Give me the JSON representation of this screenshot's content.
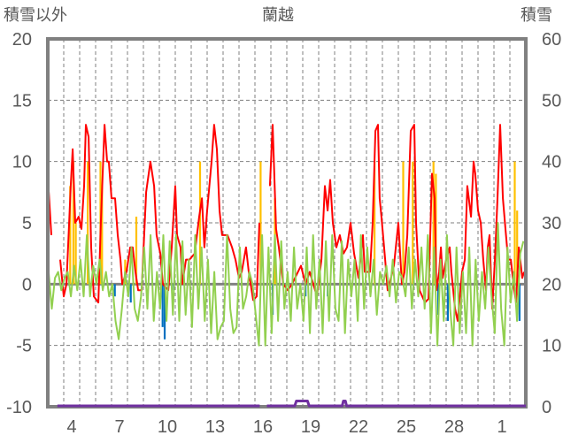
{
  "chart_data": {
    "type": "line",
    "title": "蘭越",
    "ylabel_left": "積雪以外",
    "ylabel_right": "積雪",
    "ylim_left": [
      -10,
      20
    ],
    "ylim_right": [
      0,
      60
    ],
    "yticks_left": [
      "20",
      "15",
      "10",
      "5",
      "0",
      "-5",
      "-10"
    ],
    "yticks_right": [
      "60",
      "50",
      "40",
      "30",
      "20",
      "10",
      "0"
    ],
    "xlim_days": [
      0,
      30
    ],
    "xtick_labels": [
      "4",
      "7",
      "10",
      "13",
      "16",
      "19",
      "22",
      "25",
      "28",
      "1"
    ],
    "xtick_positions_days": [
      1.5,
      4.5,
      7.5,
      10.5,
      13.5,
      16.5,
      19.5,
      22.5,
      25.5,
      28.5
    ],
    "grid": true,
    "colors": {
      "red": "#ff0000",
      "green": "#92d050",
      "yellow": "#ffc000",
      "blue": "#0070c0",
      "purple": "#7030a0",
      "axis": "#808080"
    },
    "series": [
      {
        "name": "red-line",
        "axis": "left",
        "color": "#ff0000",
        "points": [
          [
            0.06,
            7.5
          ],
          [
            0.22,
            4
          ],
          [
            0.5,
            null
          ],
          [
            0.78,
            2
          ],
          [
            1,
            -1
          ],
          [
            1.17,
            0
          ],
          [
            1.44,
            8
          ],
          [
            1.56,
            11
          ],
          [
            1.72,
            5
          ],
          [
            1.94,
            5.5
          ],
          [
            2.11,
            4.5
          ],
          [
            2.28,
            8
          ],
          [
            2.39,
            13
          ],
          [
            2.56,
            12
          ],
          [
            2.72,
            3
          ],
          [
            2.89,
            -1
          ],
          [
            3.17,
            -1.5
          ],
          [
            3.33,
            5
          ],
          [
            3.56,
            13
          ],
          [
            3.72,
            10
          ],
          [
            3.83,
            10
          ],
          [
            4,
            7
          ],
          [
            4.22,
            7
          ],
          [
            4.39,
            4
          ],
          [
            4.56,
            2
          ],
          [
            4.67,
            0
          ],
          [
            4.94,
            1
          ],
          [
            5.17,
            3
          ],
          [
            5.33,
            3
          ],
          [
            5.5,
            1
          ],
          [
            5.67,
            -0.5
          ],
          [
            5.89,
            -0.5
          ],
          [
            6.17,
            7.5
          ],
          [
            6.44,
            10
          ],
          [
            6.67,
            8
          ],
          [
            6.83,
            4
          ],
          [
            7.06,
            2.5
          ],
          [
            7.22,
            0
          ],
          [
            7.56,
            -0.5
          ],
          [
            7.78,
            3
          ],
          [
            8,
            8
          ],
          [
            8.11,
            4
          ],
          [
            8.33,
            3
          ],
          [
            8.44,
            0
          ],
          [
            8.67,
            2
          ],
          [
            8.89,
            2
          ],
          [
            9.22,
            2.5
          ],
          [
            9.5,
            5.5
          ],
          [
            9.67,
            7
          ],
          [
            9.83,
            3
          ],
          [
            10,
            6
          ],
          [
            10.28,
            10
          ],
          [
            10.44,
            13
          ],
          [
            10.61,
            11
          ],
          [
            10.78,
            6
          ],
          [
            10.94,
            4
          ],
          [
            11.28,
            4
          ],
          [
            11.56,
            3
          ],
          [
            11.78,
            2
          ],
          [
            12,
            0.5
          ],
          [
            12.17,
            1
          ],
          [
            12.44,
            3
          ],
          [
            12.61,
            1
          ],
          [
            12.89,
            -1.3
          ],
          [
            13.11,
            -1
          ],
          [
            13.28,
            5
          ],
          [
            13.6,
            null
          ],
          [
            13.94,
            8
          ],
          [
            14.11,
            13
          ],
          [
            14.33,
            4.5
          ],
          [
            14.5,
            3
          ],
          [
            14.78,
            0
          ],
          [
            15.06,
            -0.5
          ],
          [
            15.33,
            0
          ],
          [
            15.89,
            1.5
          ],
          [
            16.17,
            0
          ],
          [
            16.44,
            1
          ],
          [
            16.89,
            -1
          ],
          [
            17.17,
            2
          ],
          [
            17.39,
            8
          ],
          [
            17.56,
            6
          ],
          [
            17.72,
            8.5
          ],
          [
            17.89,
            5
          ],
          [
            18.11,
            3
          ],
          [
            18.33,
            4
          ],
          [
            18.56,
            2.5
          ],
          [
            18.78,
            3
          ],
          [
            19,
            5
          ],
          [
            19.22,
            2.5
          ],
          [
            19.5,
            0.5
          ],
          [
            19.78,
            4
          ],
          [
            19.89,
            1
          ],
          [
            20.22,
            1
          ],
          [
            20.39,
            5
          ],
          [
            20.56,
            12.5
          ],
          [
            20.72,
            13
          ],
          [
            20.83,
            7
          ],
          [
            20.94,
            5.5
          ],
          [
            21.17,
            2
          ],
          [
            21.33,
            -0.5
          ],
          [
            21.44,
            0
          ],
          [
            21.72,
            1.5
          ],
          [
            22,
            5
          ],
          [
            22.22,
            0
          ],
          [
            22.39,
            1
          ],
          [
            22.56,
            4
          ],
          [
            22.78,
            12.5
          ],
          [
            23,
            13
          ],
          [
            23.11,
            5
          ],
          [
            23.33,
            -0.5
          ],
          [
            23.5,
            -1
          ],
          [
            23.67,
            -1.5
          ],
          [
            23.89,
            -1.2
          ],
          [
            24.11,
            9
          ],
          [
            24.28,
            7
          ],
          [
            24.39,
            -0.5
          ],
          [
            24.56,
            1
          ],
          [
            24.67,
            3
          ],
          [
            24.78,
            0.5
          ],
          [
            25,
            2
          ],
          [
            25.22,
            3
          ],
          [
            25.33,
            1
          ],
          [
            25.56,
            -2
          ],
          [
            25.72,
            -3
          ],
          [
            26,
            1
          ],
          [
            26.17,
            2
          ],
          [
            26.33,
            8
          ],
          [
            26.56,
            5.5
          ],
          [
            26.72,
            10
          ],
          [
            26.83,
            9
          ],
          [
            27,
            6
          ],
          [
            27.17,
            5
          ],
          [
            27.33,
            2
          ],
          [
            27.5,
            -0.5
          ],
          [
            27.61,
            3
          ],
          [
            27.72,
            4
          ],
          [
            27.89,
            -2
          ],
          [
            28.06,
            2
          ],
          [
            28.22,
            7
          ],
          [
            28.39,
            13
          ],
          [
            28.56,
            7
          ],
          [
            28.72,
            4.5
          ],
          [
            28.89,
            2
          ],
          [
            29.06,
            2
          ],
          [
            29.22,
            0
          ],
          [
            29.39,
            -1.5
          ],
          [
            29.56,
            3
          ],
          [
            29.78,
            0.5
          ],
          [
            29.89,
            1
          ]
        ]
      },
      {
        "name": "green-line",
        "axis": "left",
        "color": "#92d050",
        "step_days": 0.2,
        "values": [
          1,
          -2,
          0.5,
          1,
          -0.5,
          0.5,
          1,
          -1,
          1.5,
          -0.5,
          2,
          -1,
          4,
          -1,
          1.5,
          0,
          2,
          -0.5,
          1,
          -1,
          0,
          -3,
          -4.5,
          -2,
          1,
          -1,
          3,
          -2,
          -3,
          -1,
          3,
          -2,
          4,
          -3,
          1,
          -2,
          4,
          -3,
          3.5,
          -2.5,
          4,
          -3,
          3.5,
          -2.5,
          2,
          -3.5,
          4,
          -2,
          3,
          -3,
          2,
          -4,
          1,
          -4.5,
          -3.5,
          -3,
          4,
          -2,
          -4,
          -3.5,
          3,
          -2,
          -1,
          1,
          0,
          -2.5,
          -5,
          4,
          -5,
          3,
          -4,
          4,
          -3,
          3.5,
          -2,
          1,
          -3,
          3,
          -2,
          0,
          -3,
          3,
          -4,
          4,
          -2,
          2,
          -4,
          3.5,
          -3,
          4,
          -2,
          -3,
          3.5,
          -4,
          2,
          -1,
          2,
          -3,
          4,
          -2,
          3,
          -1,
          2,
          -2.5,
          1,
          0,
          1.5,
          -1,
          2,
          -1.5,
          1,
          0.5,
          -1,
          3,
          -2,
          2,
          -1,
          3,
          -2,
          4,
          -4,
          3,
          -5,
          2,
          -3,
          4,
          -2,
          -5,
          3,
          -4,
          1,
          -4,
          3,
          -5,
          2,
          -3,
          1,
          -2,
          3,
          -1,
          -4,
          5,
          -2,
          -5,
          3,
          -1.5,
          1,
          -3,
          2.5,
          3.5
        ]
      },
      {
        "name": "yellow-bars",
        "axis": "left",
        "color": "#ffc000",
        "bars": [
          [
            1.4,
            8
          ],
          [
            1.6,
            10
          ],
          [
            1.75,
            5
          ],
          [
            2.5,
            10
          ],
          [
            3.3,
            10
          ],
          [
            3.4,
            8
          ],
          [
            4.85,
            2
          ],
          [
            5.55,
            5.5
          ],
          [
            9.55,
            10
          ],
          [
            13.35,
            10
          ],
          [
            14.25,
            7
          ],
          [
            20.5,
            10
          ],
          [
            22.3,
            10
          ],
          [
            22.9,
            10
          ],
          [
            24.2,
            10
          ],
          [
            24.35,
            9
          ],
          [
            29.3,
            10
          ],
          [
            29.45,
            6
          ]
        ]
      },
      {
        "name": "blue-bars",
        "axis": "left",
        "color": "#0070c0",
        "bars": [
          [
            4.2,
            -1
          ],
          [
            5.2,
            -1.5
          ],
          [
            7.2,
            -3.5
          ],
          [
            7.33,
            -4.5
          ],
          [
            7.9,
            -0.5
          ],
          [
            14.11,
            -2.5
          ],
          [
            16.17,
            -1
          ],
          [
            17.56,
            -1
          ],
          [
            24.5,
            -2.5
          ],
          [
            25.1,
            -3
          ],
          [
            25.9,
            -0.5
          ],
          [
            29.6,
            -3
          ]
        ]
      },
      {
        "name": "purple-line",
        "axis": "right",
        "color": "#7030a0",
        "points": [
          [
            0,
            0
          ],
          [
            0.1,
            null
          ],
          [
            0.6,
            0
          ],
          [
            13.3,
            0
          ],
          [
            13.4,
            null
          ],
          [
            13.75,
            0
          ],
          [
            15.5,
            0
          ],
          [
            15.6,
            0.8
          ],
          [
            16.3,
            0.8
          ],
          [
            16.4,
            0
          ],
          [
            18.48,
            0
          ],
          [
            18.55,
            0.8
          ],
          [
            18.68,
            0.8
          ],
          [
            18.75,
            0
          ],
          [
            30,
            0
          ]
        ]
      },
      {
        "name": "zero-line",
        "axis": "left",
        "color": "#808080",
        "value": 0
      }
    ]
  }
}
